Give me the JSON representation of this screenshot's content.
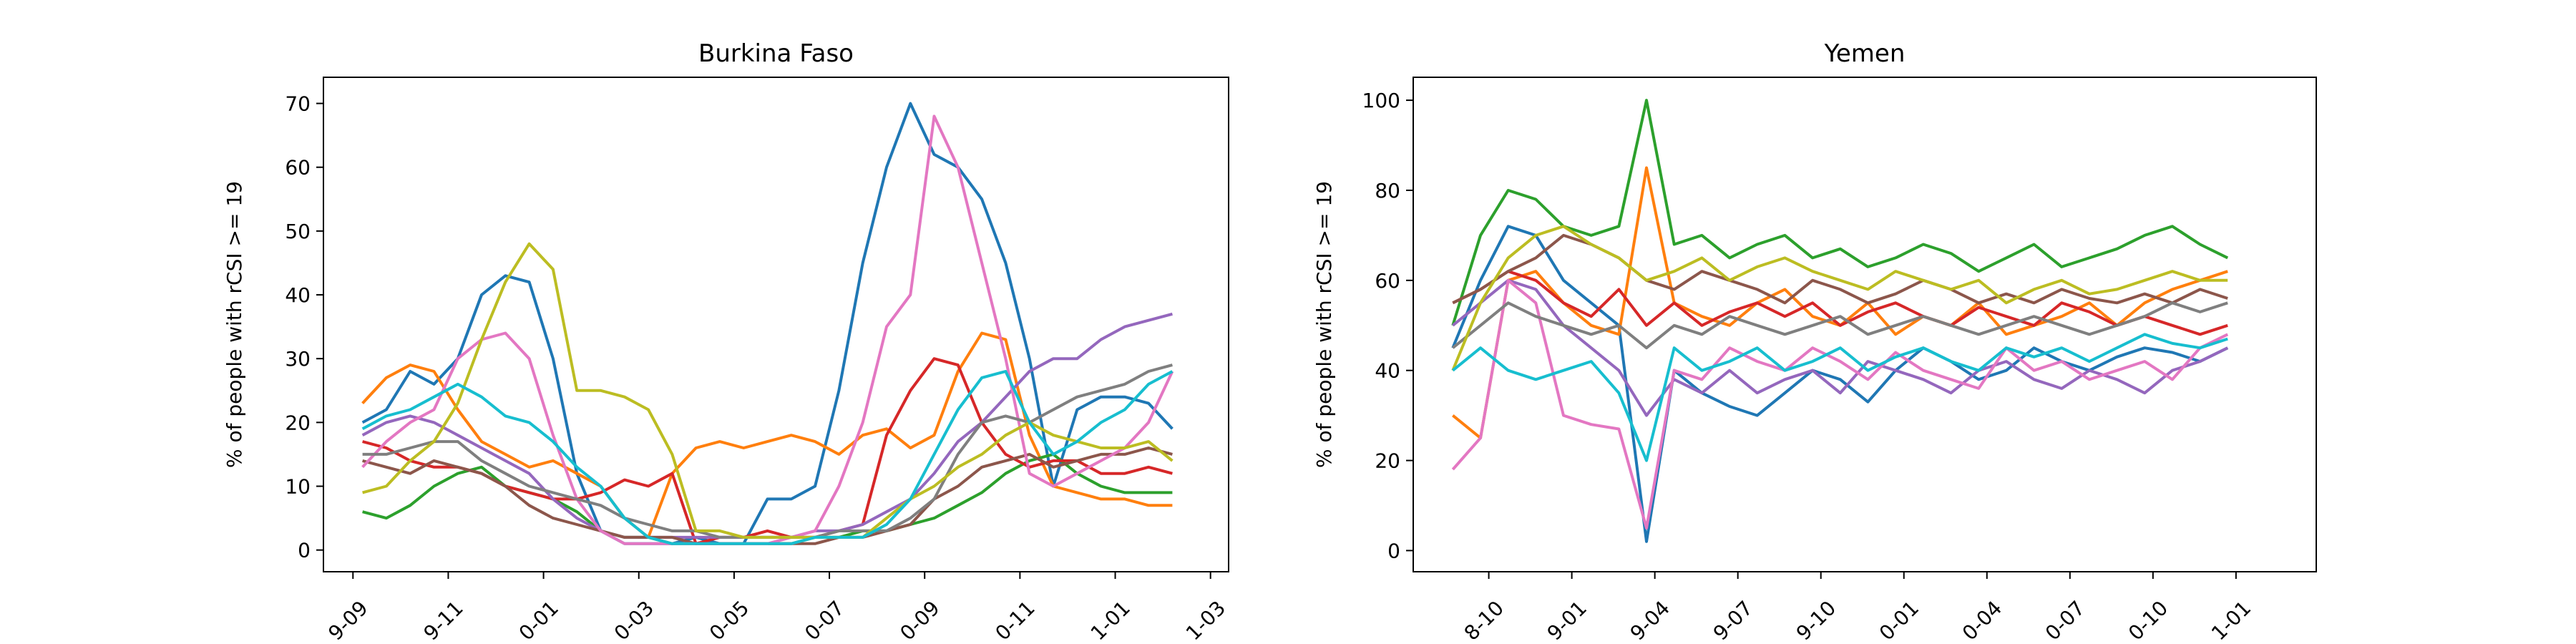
{
  "chart_data": [
    {
      "type": "line",
      "title": "Burkina Faso",
      "y_label": "% of people with rCSI >= 19",
      "x": [
        0.2,
        0.7,
        1.2,
        1.7,
        2.2,
        2.7,
        3.2,
        3.7,
        4.2,
        4.7,
        5.2,
        5.7,
        6.2,
        6.7,
        7.2,
        7.7,
        8.2,
        8.7,
        9.2,
        9.7,
        10.2,
        10.7,
        11.2,
        11.7,
        12.2,
        12.7,
        13.2,
        13.7,
        14.2,
        14.7,
        15.2,
        15.7,
        16.2,
        16.7,
        17.2
      ],
      "xlim": [
        -0.62,
        18.38
      ],
      "xticks": [
        {
          "value": 0,
          "label": "9-09"
        },
        {
          "value": 2,
          "label": "9-11"
        },
        {
          "value": 4,
          "label": "0-01"
        },
        {
          "value": 6,
          "label": "0-03"
        },
        {
          "value": 8,
          "label": "0-05"
        },
        {
          "value": 10,
          "label": "0-07"
        },
        {
          "value": 12,
          "label": "0-09"
        },
        {
          "value": 14,
          "label": "0-11"
        },
        {
          "value": 16,
          "label": "1-01"
        },
        {
          "value": 18,
          "label": "1-03"
        }
      ],
      "ylim": [
        -3.4,
        74.1
      ],
      "yticks": [
        0,
        10,
        20,
        30,
        40,
        50,
        60,
        70
      ],
      "series": [
        {
          "color": "#1f77b4",
          "values": [
            20,
            22,
            28,
            26,
            30,
            40,
            43,
            42,
            30,
            12,
            3,
            1,
            1,
            1,
            2,
            1,
            1,
            8,
            8,
            10,
            25,
            45,
            60,
            70,
            62,
            60,
            55,
            45,
            30,
            10,
            22,
            24,
            24,
            23,
            19
          ]
        },
        {
          "color": "#ff7f0e",
          "values": [
            23,
            27,
            29,
            28,
            22,
            17,
            15,
            13,
            14,
            12,
            10,
            5,
            2,
            12,
            16,
            17,
            16,
            17,
            18,
            17,
            15,
            18,
            19,
            16,
            18,
            28,
            34,
            33,
            18,
            10,
            9,
            8,
            8,
            7,
            7
          ]
        },
        {
          "color": "#2ca02c",
          "values": [
            6,
            5,
            7,
            10,
            12,
            13,
            10,
            9,
            8,
            6,
            3,
            2,
            2,
            1,
            1,
            1,
            1,
            1,
            1,
            2,
            2,
            3,
            3,
            4,
            5,
            7,
            9,
            12,
            14,
            15,
            12,
            10,
            9,
            9,
            9
          ]
        },
        {
          "color": "#d62728",
          "values": [
            17,
            16,
            14,
            13,
            13,
            12,
            10,
            9,
            8,
            8,
            9,
            11,
            10,
            12,
            1,
            2,
            2,
            3,
            2,
            2,
            3,
            4,
            18,
            25,
            30,
            29,
            20,
            15,
            13,
            14,
            14,
            12,
            12,
            13,
            12
          ]
        },
        {
          "color": "#9467bd",
          "values": [
            18,
            20,
            21,
            20,
            18,
            16,
            14,
            12,
            8,
            5,
            3,
            2,
            2,
            2,
            2,
            2,
            2,
            2,
            2,
            3,
            3,
            4,
            6,
            8,
            12,
            17,
            20,
            24,
            28,
            30,
            30,
            33,
            35,
            36,
            37
          ]
        },
        {
          "color": "#8c564b",
          "values": [
            14,
            13,
            12,
            14,
            13,
            12,
            10,
            7,
            5,
            4,
            3,
            2,
            2,
            2,
            1,
            1,
            1,
            1,
            1,
            1,
            2,
            2,
            3,
            4,
            8,
            10,
            13,
            14,
            15,
            13,
            14,
            15,
            15,
            16,
            15
          ]
        },
        {
          "color": "#e377c2",
          "values": [
            13,
            17,
            20,
            22,
            30,
            33,
            34,
            30,
            18,
            8,
            3,
            1,
            1,
            1,
            1,
            1,
            1,
            1,
            2,
            3,
            10,
            20,
            35,
            40,
            68,
            60,
            45,
            30,
            12,
            10,
            12,
            14,
            16,
            20,
            28
          ]
        },
        {
          "color": "#7f7f7f",
          "values": [
            15,
            15,
            16,
            17,
            17,
            14,
            12,
            10,
            9,
            8,
            7,
            5,
            4,
            3,
            3,
            2,
            2,
            2,
            2,
            2,
            3,
            3,
            3,
            5,
            8,
            15,
            20,
            21,
            20,
            22,
            24,
            25,
            26,
            28,
            29
          ]
        },
        {
          "color": "#bcbd22",
          "values": [
            9,
            10,
            14,
            17,
            23,
            33,
            42,
            48,
            44,
            25,
            25,
            24,
            22,
            15,
            3,
            3,
            2,
            2,
            2,
            2,
            2,
            2,
            5,
            8,
            10,
            13,
            15,
            18,
            20,
            18,
            17,
            16,
            16,
            17,
            14
          ]
        },
        {
          "color": "#17becf",
          "values": [
            19,
            21,
            22,
            24,
            26,
            24,
            21,
            20,
            17,
            13,
            10,
            5,
            2,
            1,
            1,
            1,
            1,
            1,
            1,
            2,
            2,
            2,
            4,
            8,
            15,
            22,
            27,
            28,
            20,
            15,
            17,
            20,
            22,
            26,
            28
          ]
        }
      ]
    },
    {
      "type": "line",
      "title": "Yemen",
      "y_label": "% of people with rCSI >= 19",
      "x": [
        -1.3,
        -0.3,
        0.7,
        1.7,
        2.7,
        3.7,
        4.7,
        5.7,
        6.7,
        7.7,
        8.7,
        9.7,
        10.7,
        11.7,
        12.7,
        13.7,
        14.7,
        15.7,
        16.7,
        17.7,
        18.7,
        19.7,
        20.7,
        21.7,
        22.7,
        23.7,
        24.7,
        25.7,
        26.7
      ],
      "xlim": [
        -2.73,
        29.9
      ],
      "xticks": [
        {
          "value": 0,
          "label": "8-10"
        },
        {
          "value": 3,
          "label": "9-01"
        },
        {
          "value": 6,
          "label": "9-04"
        },
        {
          "value": 9,
          "label": "9-07"
        },
        {
          "value": 12,
          "label": "9-10"
        },
        {
          "value": 15,
          "label": "0-01"
        },
        {
          "value": 18,
          "label": "0-04"
        },
        {
          "value": 21,
          "label": "0-07"
        },
        {
          "value": 24,
          "label": "0-10"
        },
        {
          "value": 27,
          "label": "1-01"
        }
      ],
      "ylim": [
        -4.7,
        105.1
      ],
      "yticks": [
        0,
        20,
        40,
        60,
        80,
        100
      ],
      "series": [
        {
          "color": "#1f77b4",
          "values": [
            45,
            60,
            72,
            70,
            60,
            55,
            50,
            2,
            40,
            35,
            32,
            30,
            35,
            40,
            38,
            33,
            40,
            45,
            42,
            38,
            40,
            45,
            42,
            40,
            43,
            45,
            44,
            42,
            45
          ]
        },
        {
          "color": "#ff7f0e",
          "values": [
            30,
            25,
            60,
            62,
            55,
            50,
            48,
            85,
            55,
            52,
            50,
            55,
            58,
            52,
            50,
            55,
            48,
            52,
            50,
            55,
            48,
            50,
            52,
            55,
            50,
            55,
            58,
            60,
            62
          ]
        },
        {
          "color": "#2ca02c",
          "values": [
            50,
            70,
            80,
            78,
            72,
            70,
            72,
            100,
            68,
            70,
            65,
            68,
            70,
            65,
            67,
            63,
            65,
            68,
            66,
            62,
            65,
            68,
            63,
            65,
            67,
            70,
            72,
            68,
            65
          ]
        },
        {
          "color": "#d62728",
          "values": [
            55,
            58,
            62,
            60,
            55,
            52,
            58,
            50,
            55,
            50,
            53,
            55,
            52,
            55,
            50,
            53,
            55,
            52,
            50,
            54,
            52,
            50,
            55,
            53,
            50,
            52,
            50,
            48,
            50
          ]
        },
        {
          "color": "#9467bd",
          "values": [
            50,
            55,
            60,
            58,
            50,
            45,
            40,
            30,
            38,
            35,
            40,
            35,
            38,
            40,
            35,
            42,
            40,
            38,
            35,
            40,
            42,
            38,
            36,
            40,
            38,
            35,
            40,
            42,
            45
          ]
        },
        {
          "color": "#8c564b",
          "values": [
            55,
            58,
            62,
            65,
            70,
            68,
            65,
            60,
            58,
            62,
            60,
            58,
            55,
            60,
            58,
            55,
            57,
            60,
            58,
            55,
            57,
            55,
            58,
            56,
            55,
            57,
            55,
            58,
            56
          ]
        },
        {
          "color": "#e377c2",
          "values": [
            18,
            25,
            60,
            55,
            30,
            28,
            27,
            5,
            40,
            38,
            45,
            42,
            40,
            45,
            42,
            38,
            44,
            40,
            38,
            36,
            45,
            40,
            42,
            38,
            40,
            42,
            38,
            45,
            48
          ]
        },
        {
          "color": "#7f7f7f",
          "values": [
            45,
            50,
            55,
            52,
            50,
            48,
            50,
            45,
            50,
            48,
            52,
            50,
            48,
            50,
            52,
            48,
            50,
            52,
            50,
            48,
            50,
            52,
            50,
            48,
            50,
            52,
            55,
            53,
            55
          ]
        },
        {
          "color": "#bcbd22",
          "values": [
            40,
            55,
            65,
            70,
            72,
            68,
            65,
            60,
            62,
            65,
            60,
            63,
            65,
            62,
            60,
            58,
            62,
            60,
            58,
            60,
            55,
            58,
            60,
            57,
            58,
            60,
            62,
            60,
            60
          ]
        },
        {
          "color": "#17becf",
          "values": [
            40,
            45,
            40,
            38,
            40,
            42,
            35,
            20,
            45,
            40,
            42,
            45,
            40,
            42,
            45,
            40,
            43,
            45,
            42,
            40,
            45,
            43,
            45,
            42,
            45,
            48,
            46,
            45,
            47
          ]
        }
      ]
    }
  ]
}
